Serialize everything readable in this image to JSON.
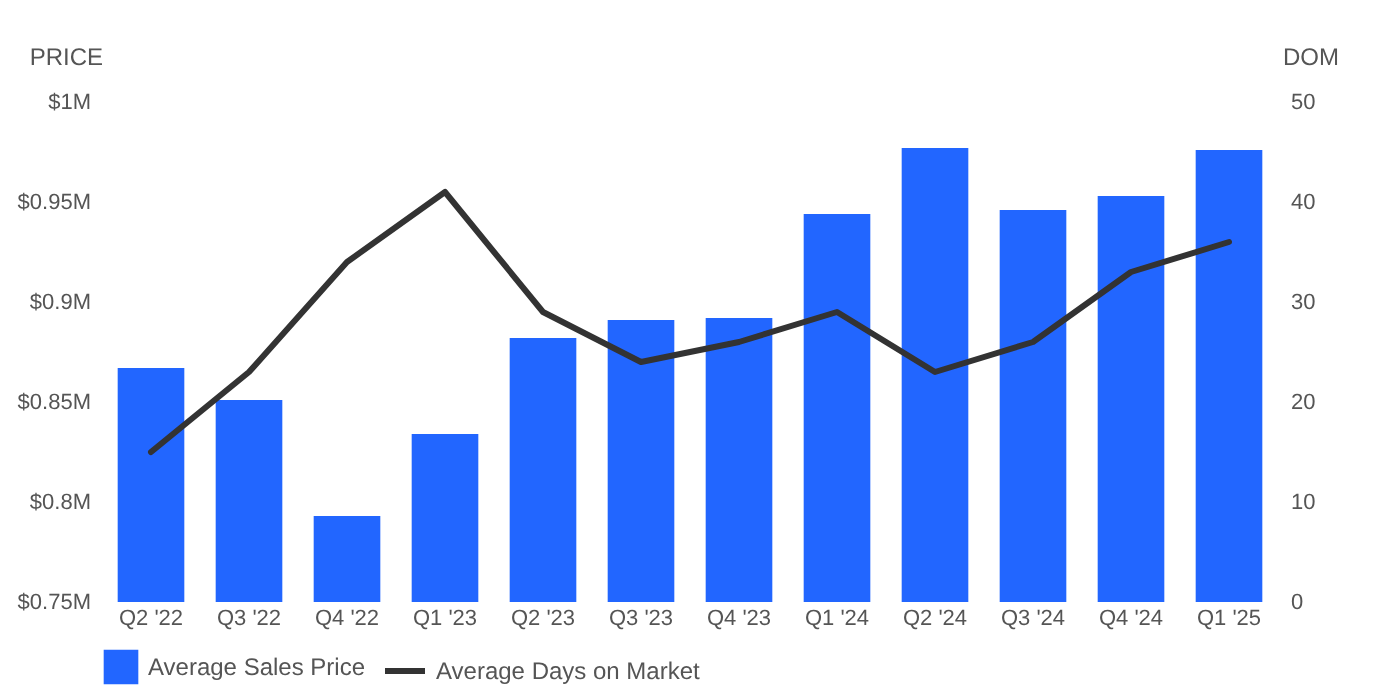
{
  "chart_data": {
    "type": "bar",
    "ylabel": "PRICE",
    "y2label": "DOM",
    "categories": [
      "Q2 '22",
      "Q3 '22",
      "Q4 '22",
      "Q1 '23",
      "Q2 '23",
      "Q3 '23",
      "Q4 '23",
      "Q1 '24",
      "Q2 '24",
      "Q3 '24",
      "Q4 '24",
      "Q1 '25"
    ],
    "series": [
      {
        "name": "Average Sales Price",
        "color": "#2266ff",
        "values": [
          0.867,
          0.851,
          0.793,
          0.834,
          0.882,
          0.891,
          0.892,
          0.944,
          0.977,
          0.946,
          0.953,
          0.976
        ]
      },
      {
        "name": "Average Days on Market",
        "type": "line",
        "axis": "y2",
        "color": "#333333",
        "values": [
          15,
          23,
          34,
          41,
          29,
          24,
          26,
          29,
          23,
          26,
          33,
          36
        ]
      }
    ],
    "ylim": [
      0.75,
      1
    ],
    "yticks": [
      {
        "value": 0.75,
        "label": "$0.75M"
      },
      {
        "value": 0.8,
        "label": "$0.8M"
      },
      {
        "value": 0.85,
        "label": "$0.85M"
      },
      {
        "value": 0.9,
        "label": "$0.9M"
      },
      {
        "value": 0.95,
        "label": "$0.95M"
      },
      {
        "value": 1,
        "label": "$1M"
      }
    ],
    "y2lim": [
      0,
      50
    ],
    "y2ticks": [
      0,
      10,
      20,
      30,
      40,
      50
    ],
    "grid": false,
    "legend": "bottom",
    "marker": "none"
  }
}
